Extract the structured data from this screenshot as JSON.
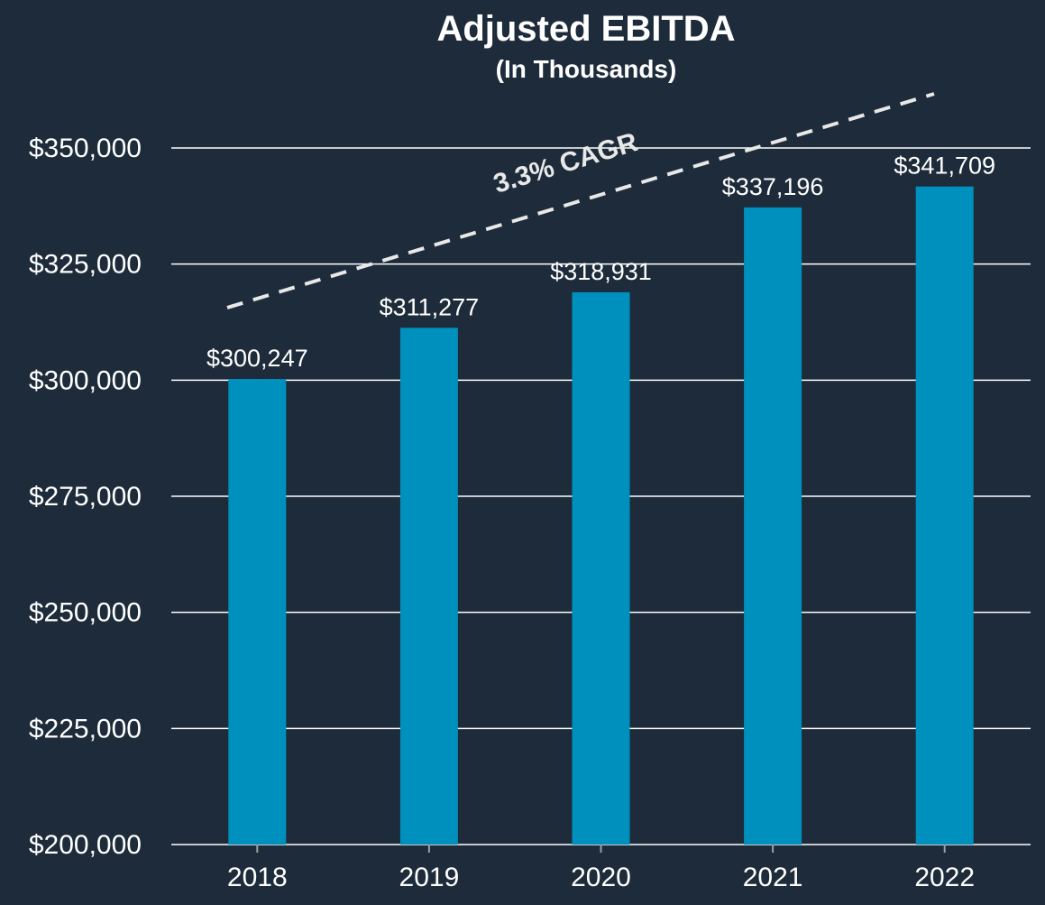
{
  "colors": {
    "background": "#1d2b3a",
    "bar": "#0090be",
    "text": "#ffffff",
    "grid": "#ffffff",
    "trend": "#e8e8e8"
  },
  "chart_data": {
    "type": "bar",
    "title": "Adjusted EBITDA",
    "subtitle": "(In Thousands)",
    "categories": [
      "2018",
      "2019",
      "2020",
      "2021",
      "2022"
    ],
    "values": [
      300247,
      311277,
      318931,
      337196,
      341709
    ],
    "data_labels": [
      "$300,247",
      "$311,277",
      "$318,931",
      "$337,196",
      "$341,709"
    ],
    "ylim": [
      200000,
      350000
    ],
    "yticks": [
      200000,
      225000,
      250000,
      275000,
      300000,
      325000,
      350000
    ],
    "ytick_labels": [
      "$200,000",
      "$225,000",
      "$250,000",
      "$275,000",
      "$300,000",
      "$325,000",
      "$350,000"
    ],
    "grid": true,
    "legend": "none",
    "trend_line": {
      "style": "dashed",
      "label": "3.3% CAGR"
    }
  }
}
